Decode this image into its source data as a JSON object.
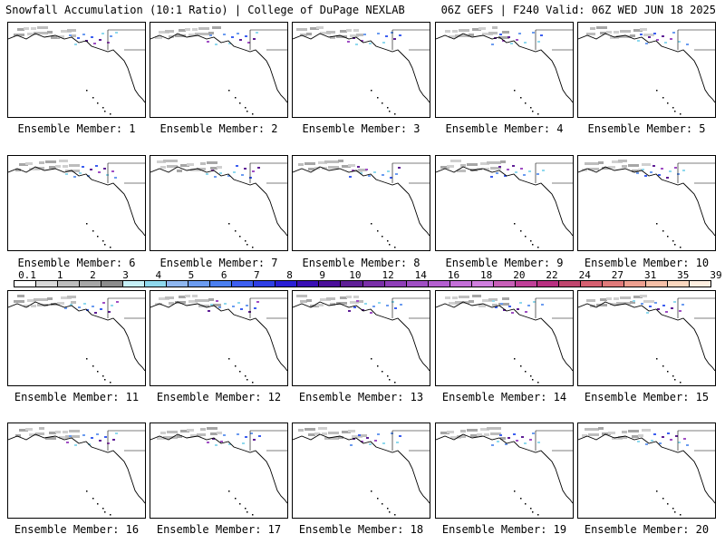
{
  "header": {
    "left_title": "Snowfall Accumulation (10:1 Ratio) | College of DuPage NEXLAB",
    "right_title": "06Z GEFS | F240 Valid: 06Z WED JUN 18 2025"
  },
  "member_prefix": "Ensemble Member: ",
  "members": [
    "Ensemble Member: 1",
    "Ensemble Member: 2",
    "Ensemble Member: 3",
    "Ensemble Member: 4",
    "Ensemble Member: 5",
    "Ensemble Member: 6",
    "Ensemble Member: 7",
    "Ensemble Member: 8",
    "Ensemble Member: 9",
    "Ensemble Member: 10",
    "Ensemble Member: 11",
    "Ensemble Member: 12",
    "Ensemble Member: 13",
    "Ensemble Member: 14",
    "Ensemble Member: 15",
    "Ensemble Member: 16",
    "Ensemble Member: 17",
    "Ensemble Member: 18",
    "Ensemble Member: 19",
    "Ensemble Member: 20"
  ],
  "colorbar": {
    "labels": [
      "0.1",
      "1",
      "2",
      "3",
      "4",
      "5",
      "6",
      "7",
      "8",
      "9",
      "10",
      "12",
      "14",
      "16",
      "18",
      "20",
      "22",
      "24",
      "27",
      "31",
      "35",
      "39"
    ],
    "colors": [
      "#ffffff",
      "#d9d9d9",
      "#bdbdbd",
      "#a6a6a6",
      "#8c8c8c",
      "#c6f0f7",
      "#8fd9ee",
      "#8fb7f0",
      "#6c9cf0",
      "#4b7ff0",
      "#3d5ff0",
      "#2f3fe6",
      "#2a1fd6",
      "#3a0fb4",
      "#4b0f9a",
      "#5f1f96",
      "#7a2fa8",
      "#8f3fb8",
      "#a04fc4",
      "#b45fd0",
      "#c46fd8",
      "#d07fdf",
      "#c85fb8",
      "#c03f98",
      "#b82f80",
      "#c0466e",
      "#d66070",
      "#e07a7a",
      "#eea090",
      "#f6c0a8",
      "#fbd8c0",
      "#fdeee0"
    ]
  }
}
